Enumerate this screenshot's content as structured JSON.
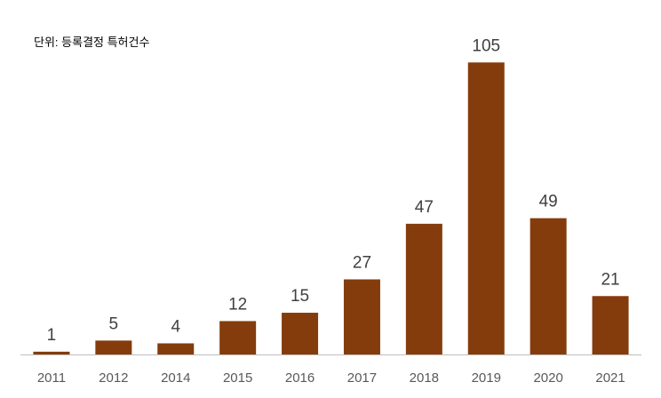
{
  "chart_data": {
    "type": "bar",
    "unit_label": "단위: 등록결정 특허건수",
    "categories": [
      "2011",
      "2012",
      "2014",
      "2015",
      "2016",
      "2017",
      "2018",
      "2019",
      "2020",
      "2021"
    ],
    "values": [
      1,
      5,
      4,
      12,
      15,
      27,
      47,
      105,
      49,
      21
    ],
    "ylim": [
      0,
      115
    ],
    "grid": false,
    "legend": "none",
    "data_labels": true,
    "colors": {
      "bar": "#843C0C",
      "axis_line": "#BFBFBF",
      "data_label": "#404040",
      "tick_label": "#595959"
    }
  }
}
